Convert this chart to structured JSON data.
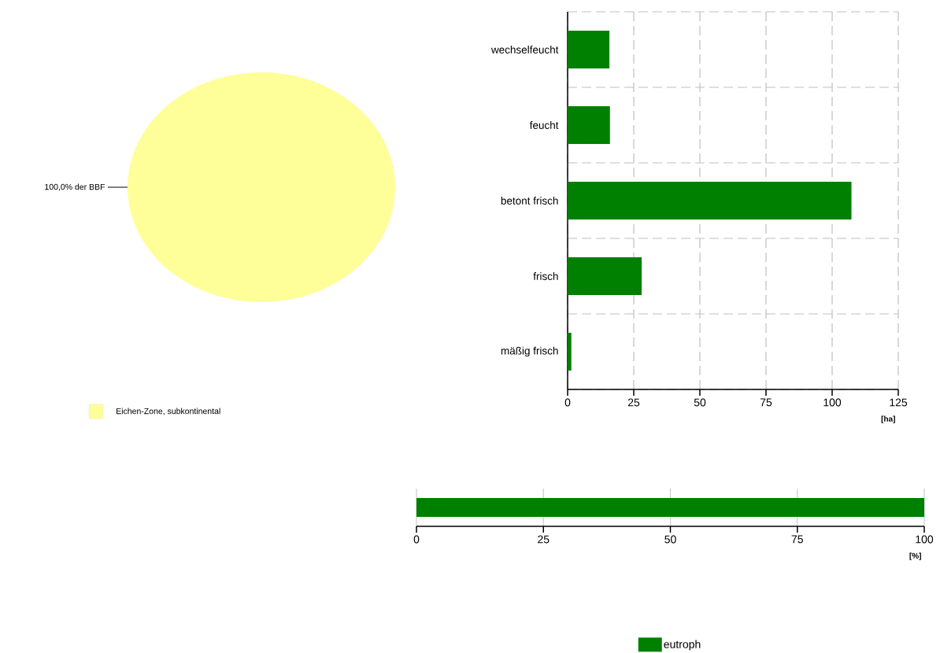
{
  "chart_data": [
    {
      "type": "pie",
      "categories": [
        "Eichen-Zone, subkontinental"
      ],
      "values": [
        100
      ],
      "colors": [
        "#ffff99"
      ],
      "value_labels": [
        "100,0% der BBF"
      ],
      "legend": "bottom"
    },
    {
      "type": "bar",
      "orientation": "horizontal",
      "categories": [
        "wechselfeucht",
        "feucht",
        "betont frisch",
        "frisch",
        "mäßig frisch"
      ],
      "values": [
        15.8,
        16.0,
        107.3,
        28.0,
        1.4
      ],
      "color": "#008000",
      "xlim": [
        0,
        125
      ],
      "xticks": [
        0,
        25,
        50,
        75,
        100,
        125
      ],
      "xlabel": "[ha]",
      "grid": true
    },
    {
      "type": "bar",
      "orientation": "horizontal",
      "categories": [
        null
      ],
      "series": [
        {
          "name": "eutroph",
          "color": "#008000",
          "values": [
            100
          ]
        }
      ],
      "xlim": [
        0,
        100
      ],
      "xticks": [
        0,
        25,
        50,
        75,
        100
      ],
      "xlabel": "[%]",
      "grid": "x",
      "legend": "bottom"
    }
  ]
}
